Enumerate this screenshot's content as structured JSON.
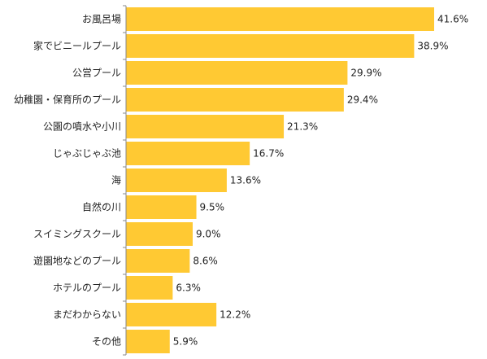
{
  "chart_data": {
    "type": "bar",
    "orientation": "horizontal",
    "categories": [
      "お風呂場",
      "家でビニールプール",
      "公営プール",
      "幼稚園・保育所のプール",
      "公園の噴水や小川",
      "じゃぶじゃぶ池",
      "海",
      "自然の川",
      "スイミングスクール",
      "遊園地などのプール",
      "ホテルのプール",
      "まだわからない",
      "その他"
    ],
    "values": [
      41.6,
      38.9,
      29.9,
      29.4,
      21.3,
      16.7,
      13.6,
      9.5,
      9.0,
      8.6,
      6.3,
      12.2,
      5.9
    ],
    "value_labels": [
      "41.6%",
      "38.9%",
      "29.9%",
      "29.4%",
      "21.3%",
      "16.7%",
      "13.6%",
      "9.5%",
      "9.0%",
      "8.6%",
      "6.3%",
      "12.2%",
      "5.9%"
    ],
    "title": "",
    "xlabel": "",
    "ylabel": "",
    "xlim": [
      0,
      45
    ],
    "grid": false,
    "legend": "none",
    "bar_color": "#FFC933",
    "axis_color": "#888888"
  }
}
